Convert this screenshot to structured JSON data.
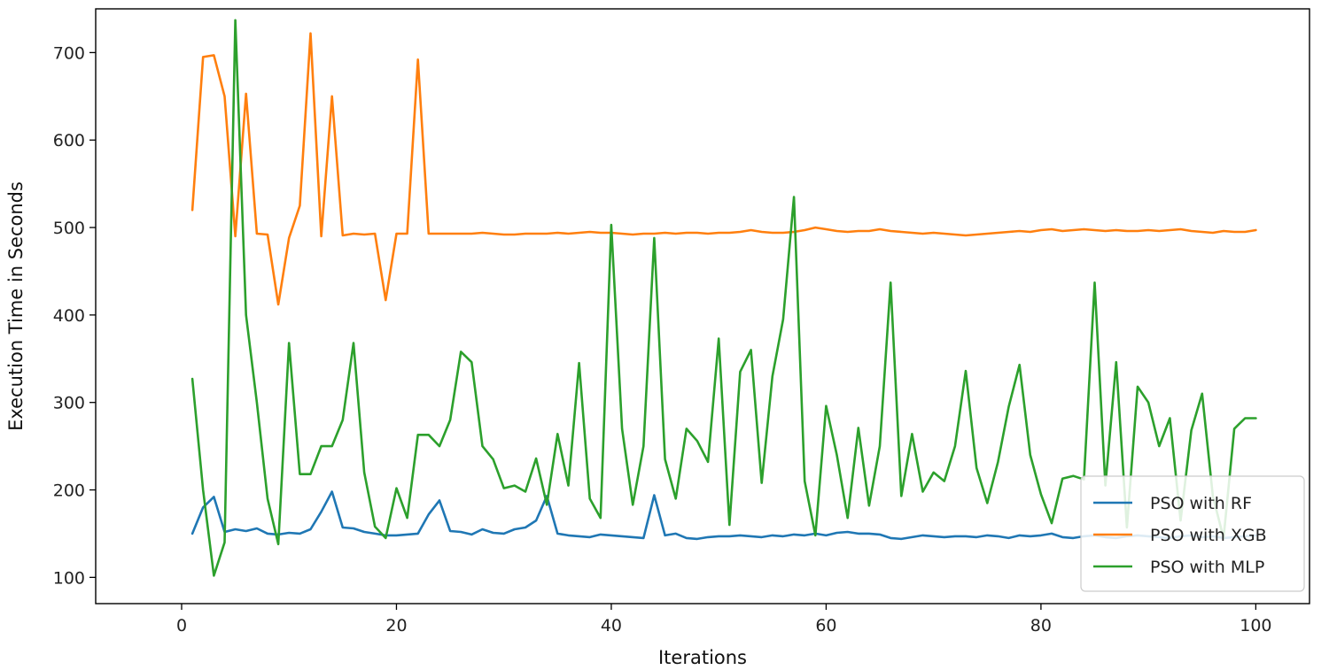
{
  "chart_data": {
    "type": "line",
    "title": "",
    "xlabel": "Iterations",
    "ylabel": "Execution Time in Seconds",
    "xlim": [
      -8,
      105
    ],
    "ylim": [
      70,
      750
    ],
    "xticks": [
      0,
      20,
      40,
      60,
      80,
      100
    ],
    "yticks": [
      100,
      200,
      300,
      400,
      500,
      600,
      700
    ],
    "grid": false,
    "legend_position": "bottom-right",
    "x": [
      1,
      2,
      3,
      4,
      5,
      6,
      7,
      8,
      9,
      10,
      11,
      12,
      13,
      14,
      15,
      16,
      17,
      18,
      19,
      20,
      21,
      22,
      23,
      24,
      25,
      26,
      27,
      28,
      29,
      30,
      31,
      32,
      33,
      34,
      35,
      36,
      37,
      38,
      39,
      40,
      41,
      42,
      43,
      44,
      45,
      46,
      47,
      48,
      49,
      50,
      51,
      52,
      53,
      54,
      55,
      56,
      57,
      58,
      59,
      60,
      61,
      62,
      63,
      64,
      65,
      66,
      67,
      68,
      69,
      70,
      71,
      72,
      73,
      74,
      75,
      76,
      77,
      78,
      79,
      80,
      81,
      82,
      83,
      84,
      85,
      86,
      87,
      88,
      89,
      90,
      91,
      92,
      93,
      94,
      95,
      96,
      97,
      98,
      99,
      100
    ],
    "series": [
      {
        "name": "PSO with RF",
        "color": "#1f77b4",
        "values": [
          150,
          180,
          192,
          152,
          155,
          153,
          156,
          150,
          149,
          151,
          150,
          155,
          175,
          198,
          157,
          156,
          152,
          150,
          148,
          148,
          149,
          150,
          172,
          188,
          153,
          152,
          149,
          155,
          151,
          150,
          155,
          157,
          165,
          193,
          150,
          148,
          147,
          146,
          149,
          148,
          147,
          146,
          145,
          194,
          148,
          150,
          145,
          144,
          146,
          147,
          147,
          148,
          147,
          146,
          148,
          147,
          149,
          148,
          150,
          148,
          151,
          152,
          150,
          150,
          149,
          145,
          144,
          146,
          148,
          147,
          146,
          147,
          147,
          146,
          148,
          147,
          145,
          148,
          147,
          148,
          150,
          146,
          145,
          147,
          148,
          146,
          145,
          147,
          148,
          147,
          146,
          145,
          147,
          148,
          146,
          147,
          145,
          146,
          147,
          148
        ]
      },
      {
        "name": "PSO with XGB",
        "color": "#ff7f0e",
        "values": [
          520,
          695,
          697,
          650,
          490,
          653,
          493,
          492,
          412,
          488,
          525,
          722,
          490,
          650,
          491,
          493,
          492,
          493,
          417,
          493,
          493,
          692,
          493,
          493,
          493,
          493,
          493,
          494,
          493,
          492,
          492,
          493,
          493,
          493,
          494,
          493,
          494,
          495,
          494,
          494,
          493,
          492,
          493,
          493,
          494,
          493,
          494,
          494,
          493,
          494,
          494,
          495,
          497,
          495,
          494,
          494,
          495,
          497,
          500,
          498,
          496,
          495,
          496,
          496,
          498,
          496,
          495,
          494,
          493,
          494,
          493,
          492,
          491,
          492,
          493,
          494,
          495,
          496,
          495,
          497,
          498,
          496,
          497,
          498,
          497,
          496,
          497,
          496,
          496,
          497,
          496,
          497,
          498,
          496,
          495,
          494,
          496,
          495,
          495,
          497
        ]
      },
      {
        "name": "PSO with MLP",
        "color": "#2ca02c",
        "values": [
          327,
          200,
          102,
          140,
          737,
          400,
          300,
          190,
          138,
          368,
          218,
          218,
          250,
          250,
          280,
          368,
          220,
          158,
          145,
          202,
          168,
          263,
          263,
          250,
          280,
          358,
          346,
          250,
          235,
          202,
          205,
          198,
          236,
          183,
          264,
          205,
          345,
          190,
          168,
          503,
          270,
          183,
          250,
          488,
          235,
          190,
          270,
          256,
          232,
          373,
          160,
          335,
          360,
          208,
          330,
          395,
          535,
          210,
          148,
          296,
          240,
          168,
          271,
          182,
          250,
          437,
          193,
          264,
          198,
          220,
          210,
          250,
          336,
          225,
          185,
          232,
          295,
          343,
          240,
          195,
          162,
          213,
          216,
          212,
          437,
          205,
          346,
          157,
          318,
          300,
          250,
          282,
          165,
          268,
          310,
          193,
          145,
          270,
          282,
          282
        ]
      }
    ]
  }
}
